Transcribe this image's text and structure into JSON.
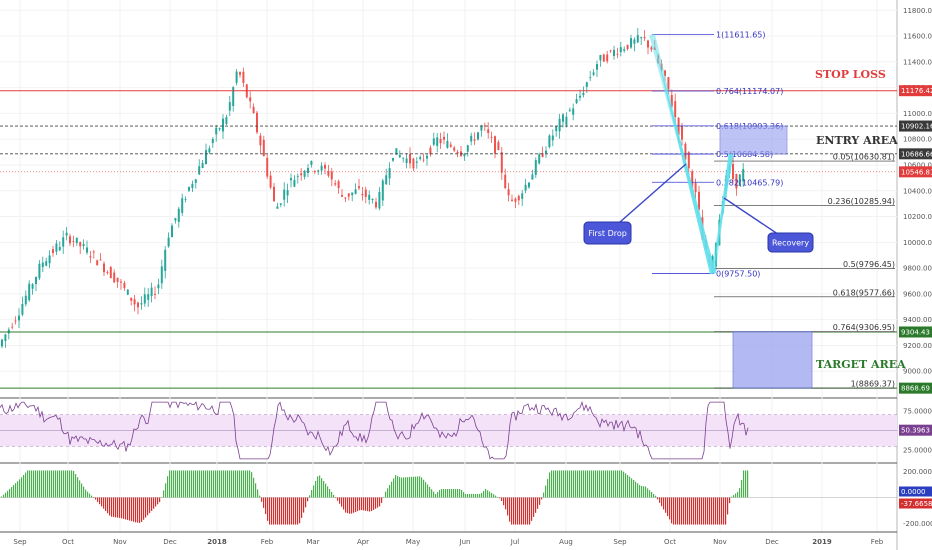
{
  "chart_data": {
    "type": "candlestick",
    "main": {
      "y_axis_ticks": [
        "11800.00",
        "11600.00",
        "11400.00",
        "11200.00",
        "11000.00",
        "10800.00",
        "10600.00",
        "10400.00",
        "10200.00",
        "10000.00",
        "9800.00",
        "9600.00",
        "9400.00",
        "9200.00",
        "9000.00"
      ],
      "ylim": [
        8800,
        11880
      ],
      "price_badges": [
        {
          "label": "11176.42",
          "value": 11176.42,
          "color": "#e23b3b"
        },
        {
          "label": "10902.16",
          "value": 10902.16,
          "color": "#3a3a3a"
        },
        {
          "label": "10686.66",
          "value": 10686.66,
          "color": "#3a3a3a"
        },
        {
          "label": "10546.81",
          "value": 10546.81,
          "color": "#e23b3b"
        },
        {
          "label": "9304.43",
          "value": 9304.43,
          "color": "#2b7a2b"
        },
        {
          "label": "8868.69",
          "value": 8868.69,
          "color": "#2b7a2b"
        }
      ],
      "fib_upper": [
        {
          "label": "1(11611.65)",
          "value": 11611.65
        },
        {
          "label": "0.764(11174.07)",
          "value": 11174.07
        },
        {
          "label": "0.618(10903.36)",
          "value": 10903.36
        },
        {
          "label": "0.5(10684.58)",
          "value": 10684.58
        },
        {
          "label": "0.382(10465.79)",
          "value": 10465.79
        },
        {
          "label": "0(9757.50)",
          "value": 9757.5
        }
      ],
      "fib_lower": [
        {
          "label": "0.05(10630.81)",
          "value": 10630.81
        },
        {
          "label": "0.236(10285.94)",
          "value": 10285.94
        },
        {
          "label": "0.5(9796.45)",
          "value": 9796.45
        },
        {
          "label": "0.618(9577.66)",
          "value": 9577.66
        },
        {
          "label": "0.764(9306.95)",
          "value": 9306.95
        },
        {
          "label": "1(8869.37)",
          "value": 8869.37
        }
      ],
      "annotations": {
        "stop_loss": "STOP LOSS",
        "entry_area": "ENTRY AREA",
        "target_area": "TARGET AREA",
        "first_drop": "First Drop",
        "recovery": "Recovery"
      },
      "colors": {
        "up": "#26a69a",
        "down": "#ef5350",
        "stop": "#e23b3b",
        "target": "#2b7a2b",
        "zone": "#9aa4f0",
        "swing": "#5ee0ec"
      }
    },
    "rsi": {
      "y_axis_ticks": [
        "75.0000",
        "25.0000"
      ],
      "current": "50.3963",
      "ylim": [
        10,
        90
      ],
      "bands": [
        70,
        50,
        30
      ]
    },
    "macd": {
      "y_axis_ticks": [
        "200.0000",
        "-200.0000"
      ],
      "current_a": "0.0000",
      "current_b": "-37.6658",
      "ylim": [
        -260,
        260
      ]
    },
    "x_axis_ticks": [
      "Sep",
      "Oct",
      "Nov",
      "Dec",
      "2018",
      "Feb",
      "Mar",
      "Apr",
      "May",
      "Jun",
      "Jul",
      "Aug",
      "Sep",
      "Oct",
      "Nov",
      "Dec",
      "2019",
      "Feb"
    ]
  }
}
